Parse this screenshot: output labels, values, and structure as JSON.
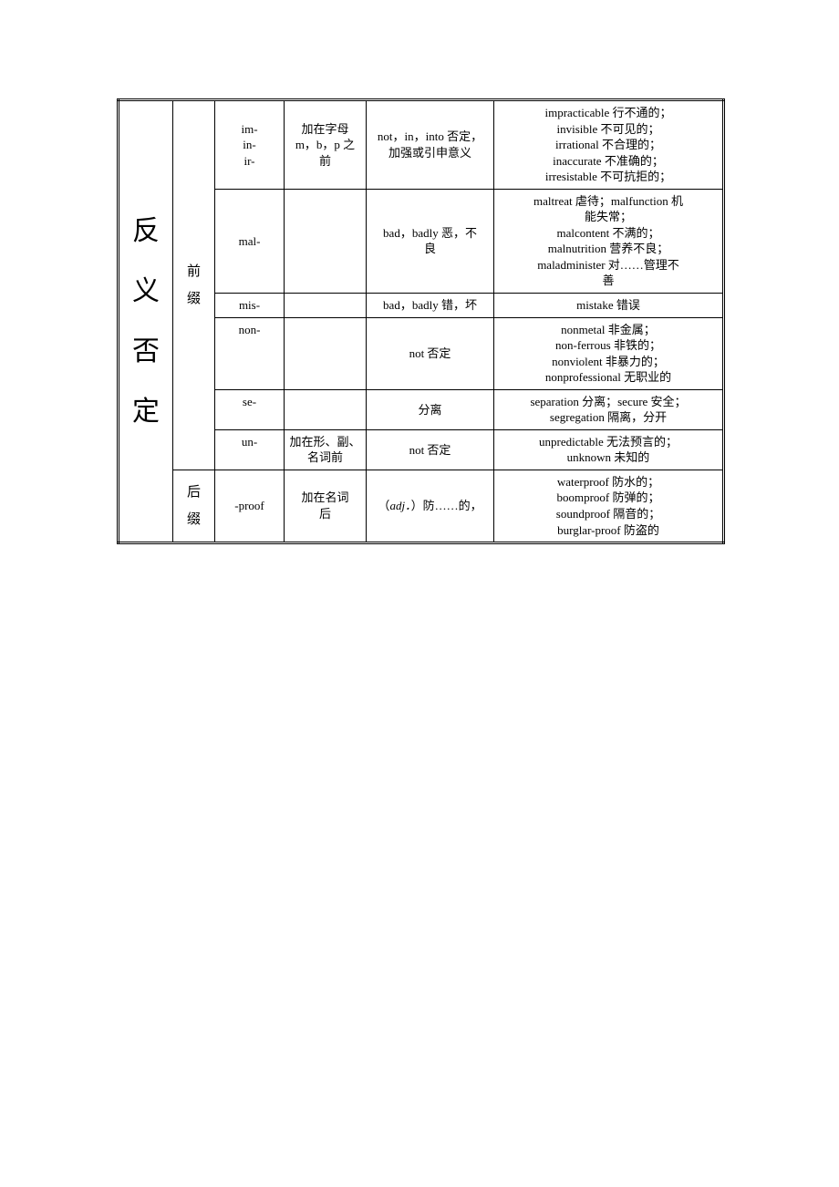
{
  "category_label": "反\n义\n否\n定",
  "prefix_label": "前\n缀",
  "suffix_label": "后\n缀",
  "rows": [
    {
      "affix": "im-\nin-\nir-",
      "note": "加在字母\nm，b，p 之\n前",
      "meaning": "not，in，into 否定，\n加强或引申意义",
      "examples": "impracticable 行不通的；\ninvisible 不可见的；\nirrational 不合理的；\ninaccurate 不准确的；\nirresistable 不可抗拒的；"
    },
    {
      "affix": "mal-",
      "note": "",
      "meaning": "bad，badly 恶，不\n良",
      "examples": "maltreat 虐待；malfunction 机\n能失常；\nmalcontent 不满的；\nmalnutrition 营养不良；\nmaladminister 对……管理不\n善"
    },
    {
      "affix": "mis-",
      "note": "",
      "meaning": "bad，badly 错，坏",
      "examples": "mistake 错误"
    },
    {
      "affix": "non-",
      "note": "",
      "meaning": "not 否定",
      "examples": "nonmetal 非金属；\nnon-ferrous 非铁的；\nnonviolent 非暴力的；\nnonprofessional 无职业的"
    },
    {
      "affix": "se-",
      "note": "",
      "meaning": "分离",
      "examples": "separation 分离；secure 安全；\nsegregation 隔离，分开"
    },
    {
      "affix": "un-",
      "note": "加在形、副、\n名词前",
      "meaning": "not 否定",
      "examples": "unpredictable 无法预言的；\nunknown 未知的"
    }
  ],
  "suffix_row": {
    "affix": "-proof",
    "note": "加在名词\n后",
    "meaning_prefix": "（",
    "meaning_ital": "adj．",
    "meaning_suffix": "）防……的，",
    "examples": "waterproof 防水的；\nboomproof 防弹的；\nsoundproof 隔音的；\nburglar-proof 防盗的"
  },
  "style": {
    "font_size_body": 13,
    "font_size_vert": 30,
    "font_size_vtype": 15,
    "border_color": "#000000",
    "background_color": "#ffffff",
    "text_color": "#000000"
  }
}
